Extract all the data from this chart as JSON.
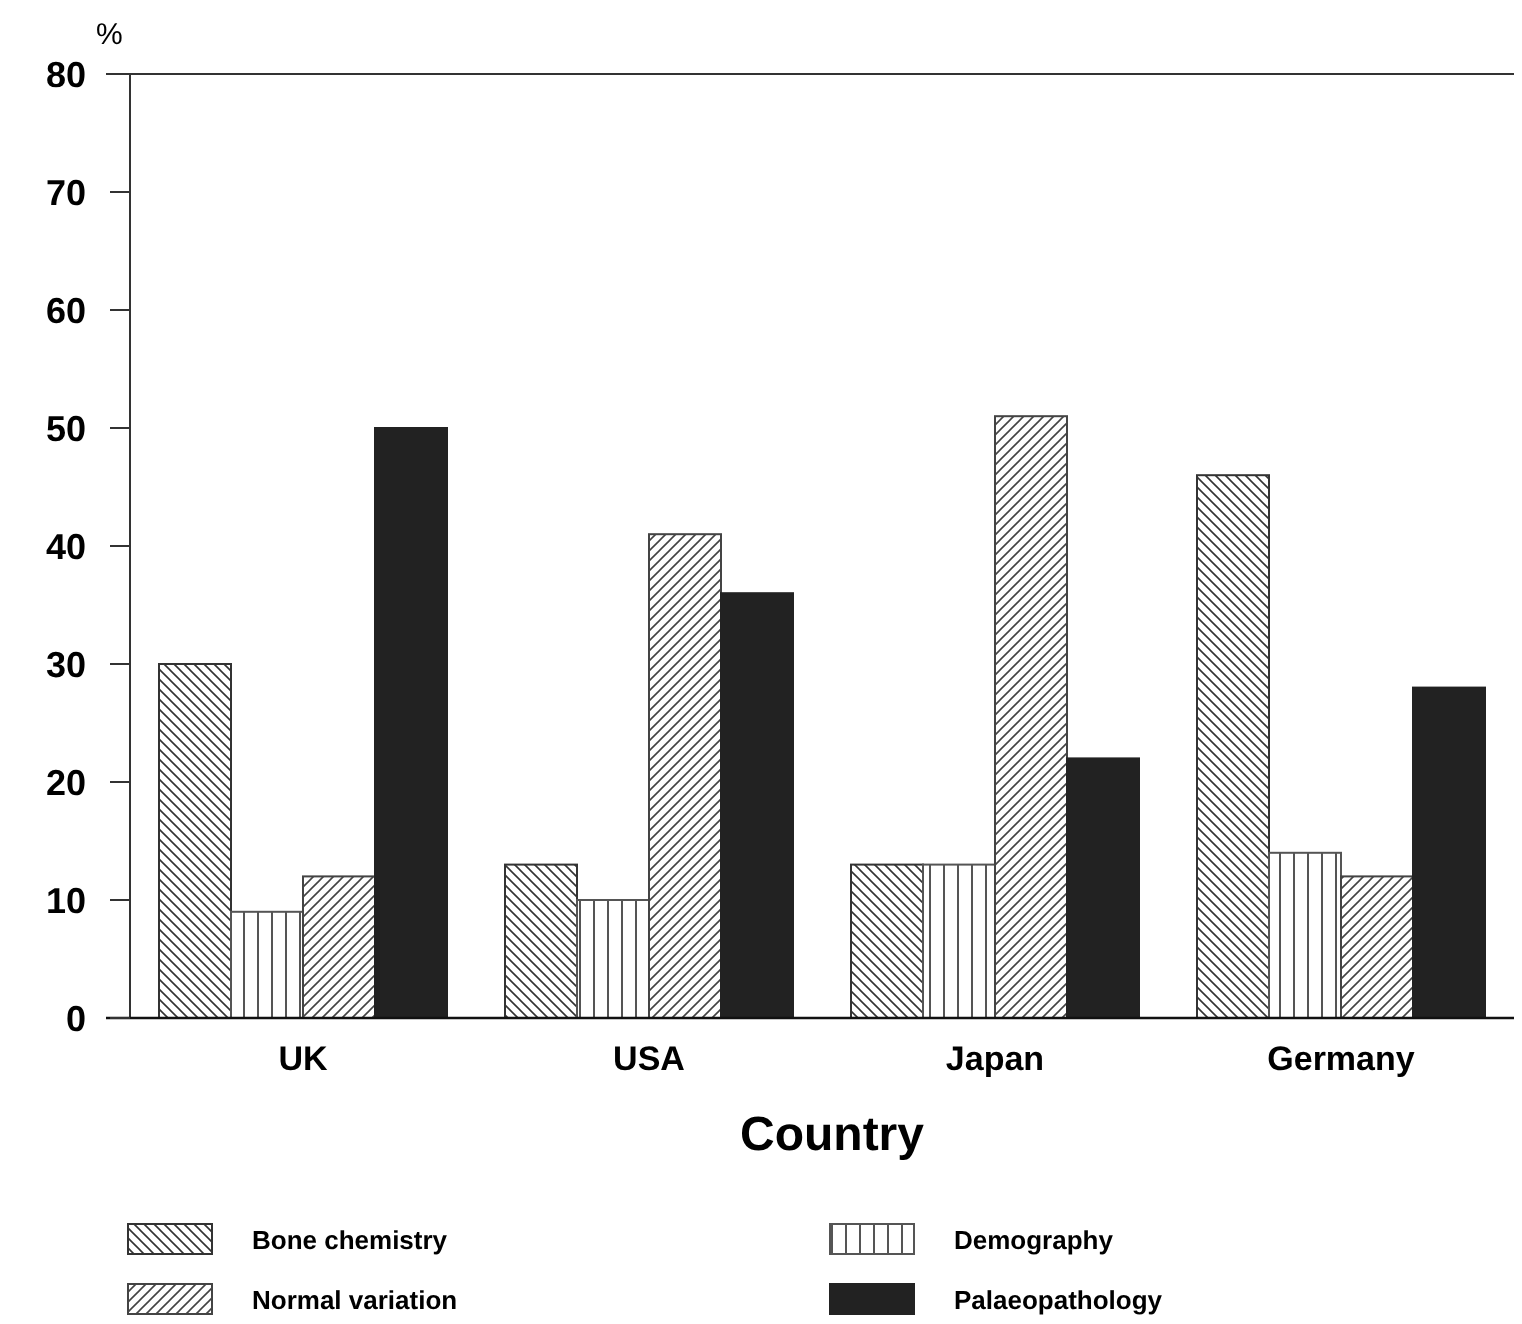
{
  "chart_data": {
    "type": "bar",
    "ylabel": "%",
    "xlabel": "Country",
    "categories": [
      "UK",
      "USA",
      "Japan",
      "Germany"
    ],
    "series": [
      {
        "name": "Bone chemistry",
        "color": "#333333",
        "values": [
          30,
          13,
          13,
          46
        ]
      },
      {
        "name": "Demography",
        "color": "#555555",
        "values": [
          9,
          10,
          13,
          14
        ]
      },
      {
        "name": "Normal variation",
        "color": "#444444",
        "values": [
          12,
          41,
          51,
          12
        ]
      },
      {
        "name": "Palaeopathology",
        "color": "#222222",
        "values": [
          50,
          36,
          22,
          28
        ]
      }
    ],
    "ylim": [
      0,
      80
    ],
    "yticks": [
      0,
      10,
      20,
      30,
      40,
      50,
      60,
      70,
      80
    ],
    "legend": "bottom",
    "grid": false
  }
}
